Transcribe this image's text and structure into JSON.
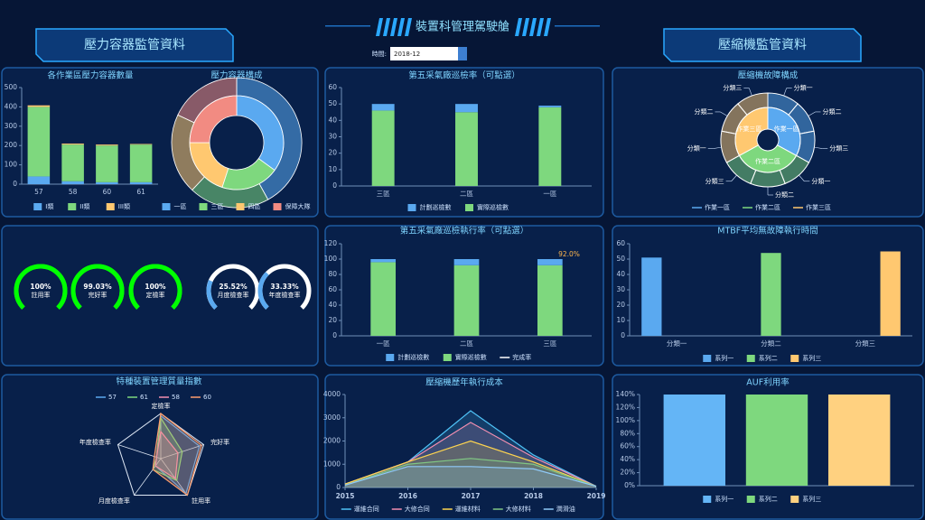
{
  "header": {
    "title": "裝置科管理駕駛艙",
    "left_title": "壓力容器監管資料",
    "right_title": "壓縮機監管資料",
    "time_label": "時間:",
    "time_value": "2018-12"
  },
  "chart_data": [
    {
      "type": "bar",
      "title": "各作業區壓力容器數量",
      "stacked": true,
      "categories": [
        "57",
        "58",
        "60",
        "61"
      ],
      "series": [
        {
          "name": "I類",
          "color": "#5aa9f0",
          "values": [
            40,
            15,
            10,
            10
          ]
        },
        {
          "name": "II類",
          "color": "#7ed87e",
          "values": [
            360,
            190,
            190,
            195
          ]
        },
        {
          "name": "III類",
          "color": "#ffc870",
          "values": [
            8,
            5,
            5,
            3
          ]
        }
      ],
      "ylim": [
        0,
        500
      ],
      "yticks": [
        0,
        100,
        200,
        300,
        400,
        500
      ],
      "legend": "bottom"
    },
    {
      "type": "pie",
      "title": "壓力容器構成",
      "categories": [
        "一區",
        "三區",
        "四區",
        "保障大隊"
      ],
      "colors": [
        "#5aa9f0",
        "#7ed87e",
        "#ffc870",
        "#f28b82"
      ],
      "rings": [
        [
          35,
          20,
          20,
          25
        ],
        [
          42,
          20,
          20,
          18
        ]
      ],
      "legend": "bottom"
    },
    {
      "type": "bar",
      "title": "第五采氣廠巡檢率（可點選）",
      "stacked": true,
      "stack_from": "last",
      "categories": [
        "三區",
        "二區",
        "一區"
      ],
      "series": [
        {
          "name": "計劃巡檢數",
          "color": "#5aa9f0",
          "values": [
            4,
            5,
            1
          ]
        },
        {
          "name": "實際巡檢數",
          "color": "#7ed87e",
          "values": [
            46,
            45,
            48
          ]
        }
      ],
      "ylim": [
        0,
        60
      ],
      "yticks": [
        0,
        10,
        20,
        30,
        40,
        50,
        60
      ],
      "legend": "bottom"
    },
    {
      "type": "bar",
      "title": "第五采氣廠巡檢執行率（可點選）",
      "stacked": true,
      "stack_from": "last",
      "categories": [
        "一區",
        "二區",
        "三區"
      ],
      "series": [
        {
          "name": "計劃巡檢數",
          "color": "#5aa9f0",
          "values": [
            4,
            8,
            8
          ]
        },
        {
          "name": "實際巡檢數",
          "color": "#7ed87e",
          "values": [
            96,
            92,
            92
          ]
        },
        {
          "name": "完成率",
          "type": "line",
          "color": "#ffffff",
          "values": [
            null,
            null,
            null
          ]
        }
      ],
      "annotation": "92.0%",
      "ylim": [
        0,
        120
      ],
      "yticks": [
        0,
        20,
        40,
        60,
        80,
        100,
        120
      ],
      "legend": "bottom"
    },
    {
      "type": "sunburst",
      "title": "壓縮機故障構成",
      "categories": [
        "作業一區",
        "作業二區",
        "作業三區"
      ],
      "colors": [
        "#5aa9f0",
        "#7ed87e",
        "#ffc870"
      ],
      "values": [
        33,
        34,
        33
      ],
      "children": [
        {
          "labels": [
            "分類一",
            "分類二",
            "分類三"
          ],
          "values": [
            11,
            11,
            11
          ]
        },
        {
          "labels": [
            "分類一",
            "分類二",
            "分類三"
          ],
          "values": [
            11,
            12,
            11
          ]
        },
        {
          "labels": [
            "分類一",
            "分類二",
            "分類三"
          ],
          "values": [
            11,
            11,
            11
          ]
        }
      ],
      "legend": "bottom"
    },
    {
      "type": "gauge",
      "categories": [
        "註用率",
        "完好率",
        "定檢率",
        "月度檢查率",
        "年度檢查率"
      ],
      "max": 100,
      "values": [
        100,
        99.03,
        100,
        25.52,
        33.33
      ],
      "value_labels": [
        "100%",
        "99.03%",
        "100%",
        "25.52%",
        "33.33%"
      ],
      "colors": [
        "#00ff00",
        "#00ff00",
        "#00ff00",
        "#5aa9f0",
        "#5aa9f0"
      ],
      "track_colors": [
        "#00ff00",
        "#00ff00",
        "#00ff00",
        "#ffffff",
        "#ffffff"
      ]
    },
    {
      "type": "bar",
      "title": "MTBF平均無故障執行時間",
      "categories": [
        "分類一",
        "分類二",
        "分類三"
      ],
      "series": [
        {
          "name": "系列一",
          "color": "#5aa9f0",
          "values": [
            51,
            null,
            null
          ]
        },
        {
          "name": "系列二",
          "color": "#7ed87e",
          "values": [
            null,
            54,
            null
          ]
        },
        {
          "name": "系列三",
          "color": "#ffc870",
          "values": [
            null,
            null,
            55
          ]
        }
      ],
      "ylim": [
        0,
        60
      ],
      "yticks": [
        0,
        10,
        20,
        30,
        40,
        50,
        60
      ],
      "legend": "bottom"
    },
    {
      "type": "radar",
      "title": "特種裝置管理質量指數",
      "indicators": [
        "定檢率",
        "完好率",
        "註用率",
        "月度檢查率",
        "年度檢查率"
      ],
      "max": 100,
      "series": [
        {
          "name": "57",
          "color": "#5aa9f0",
          "values": [
            95,
            90,
            95,
            20,
            10
          ]
        },
        {
          "name": "61",
          "color": "#7ed87e",
          "values": [
            90,
            50,
            60,
            30,
            10
          ]
        },
        {
          "name": "58",
          "color": "#f48fb1",
          "values": [
            60,
            40,
            55,
            20,
            10
          ]
        },
        {
          "name": "60",
          "color": "#ff9e6e",
          "values": [
            100,
            95,
            100,
            30,
            15
          ]
        }
      ],
      "legend": "top"
    },
    {
      "type": "line",
      "title": "壓縮機歷年執行成本",
      "area": true,
      "x": [
        2015,
        2016,
        2017,
        2018,
        2019
      ],
      "series": [
        {
          "name": "運維合同",
          "color": "#4fc3f7",
          "values": [
            150,
            1100,
            3300,
            1400,
            50
          ]
        },
        {
          "name": "大修合同",
          "color": "#f48fb1",
          "values": [
            150,
            1100,
            2800,
            1300,
            50
          ]
        },
        {
          "name": "運維材料",
          "color": "#ffd54f",
          "values": [
            150,
            1100,
            2000,
            1100,
            50
          ]
        },
        {
          "name": "大修材料",
          "color": "#81c784",
          "values": [
            100,
            1000,
            1250,
            1000,
            50
          ]
        },
        {
          "name": "潤滑油",
          "color": "#90caf9",
          "values": [
            100,
            900,
            900,
            800,
            50
          ]
        }
      ],
      "xlim": [
        2015,
        2019
      ],
      "xticks": [
        2015,
        2016,
        2017,
        2018,
        2019
      ],
      "ylim": [
        0,
        4000
      ],
      "yticks": [
        0,
        1000,
        2000,
        3000,
        4000
      ],
      "legend": "bottom"
    },
    {
      "type": "bar",
      "title": "AUF利用率",
      "categories": [
        null
      ],
      "series": [
        {
          "name": "系列一",
          "color": "#64b5f6",
          "values": [
            140
          ]
        },
        {
          "name": "系列二",
          "color": "#7ed87e",
          "values": [
            140
          ]
        },
        {
          "name": "系列三",
          "color": "#ffd180",
          "values": [
            140
          ]
        }
      ],
      "ylim": [
        0,
        140
      ],
      "yticks": [
        {
          "value": 0,
          "label": "0%"
        },
        {
          "value": 20,
          "label": "20%"
        },
        {
          "value": 40,
          "label": "40%"
        },
        {
          "value": 60,
          "label": "60%"
        },
        {
          "value": 80,
          "label": "80%"
        },
        {
          "value": 100,
          "label": "100%"
        },
        {
          "value": 120,
          "label": "120%"
        },
        {
          "value": 140,
          "label": "140%"
        }
      ],
      "legend": "bottom"
    }
  ]
}
